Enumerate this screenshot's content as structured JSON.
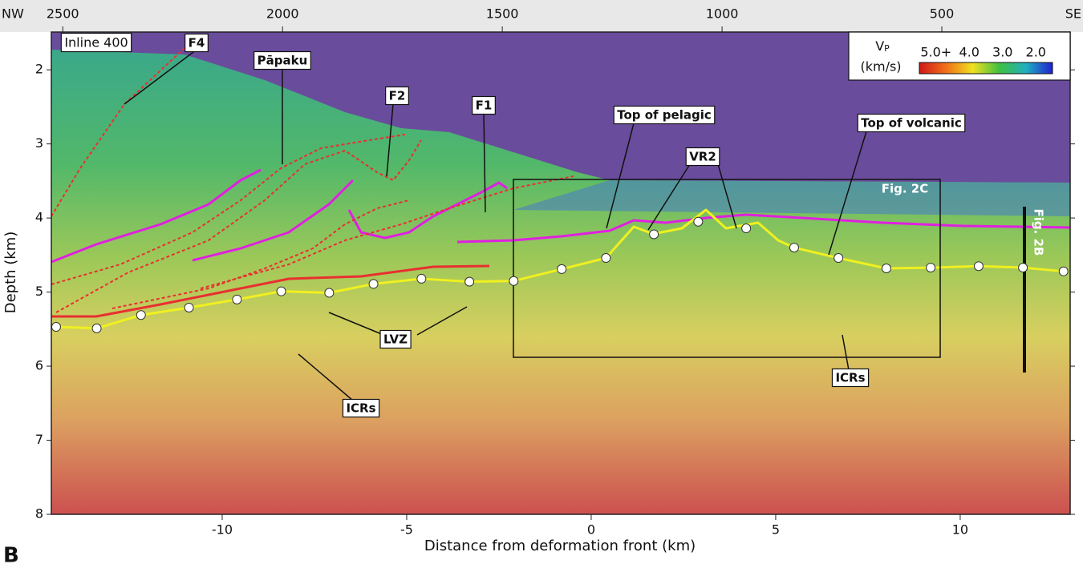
{
  "panel_label": "B",
  "chart_data": {
    "type": "section",
    "xlabel": "Distance from deformation front (km)",
    "ylabel": "Depth (km)",
    "xlim": [
      -14.63,
      12.98
    ],
    "xticks": [
      -10,
      -5,
      0,
      5,
      10
    ],
    "ylim": [
      1.49,
      8
    ],
    "y_inverted": true,
    "yticks": [
      2,
      3,
      4,
      5,
      6,
      7,
      8
    ],
    "x2lim": [
      2526,
      208
    ],
    "x2ticks": [
      2500,
      2000,
      1500,
      1000,
      500
    ],
    "x2_left_label": "NW",
    "x2_right_label": "SE",
    "inline_label": "Inline 400",
    "annotations": [
      "F4",
      "Pāpaku",
      "F2",
      "F1",
      "Top of pelagic",
      "VR2",
      "Top of volcanic",
      "Fig. 2C",
      "Fig. 2B",
      "LVZ",
      "ICRs",
      "ICRs"
    ],
    "colorbar": {
      "title": "V",
      "title_sub": "P",
      "unit": "(km/s)",
      "lim": [
        5.5,
        1.5
      ],
      "ticks": [
        {
          "value": 5,
          "label": "5.0+"
        },
        {
          "value": 4,
          "label": "4.0"
        },
        {
          "value": 3,
          "label": "3.0"
        },
        {
          "value": 2,
          "label": "2.0"
        }
      ],
      "colormap": [
        "#d01818",
        "#f07018",
        "#f0e020",
        "#40c040",
        "#20b0c0",
        "#2020d0"
      ]
    },
    "marker_color": "#ffffff",
    "x": [
      -14.5,
      -13.4,
      -12.2,
      -10.9,
      -9.6,
      -8.4,
      -7.1,
      -5.9,
      -4.6,
      -3.3,
      -2.1,
      -0.8,
      0.4,
      1.7,
      2.9,
      4.2,
      5.5,
      6.7,
      8.0,
      9.2,
      10.5,
      11.7,
      12.8
    ],
    "values": [
      5.47,
      5.49,
      5.31,
      5.21,
      5.1,
      4.99,
      5.01,
      4.89,
      4.82,
      4.86,
      4.85,
      4.69,
      4.54,
      4.22,
      4.05,
      4.14,
      4.4,
      4.54,
      4.68,
      4.67,
      4.65,
      4.67,
      4.72
    ]
  }
}
